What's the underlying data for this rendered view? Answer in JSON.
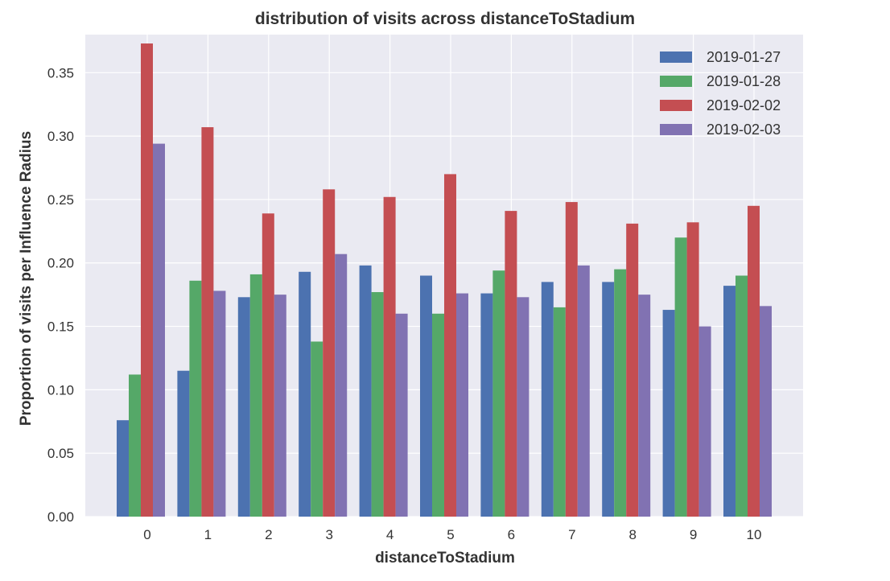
{
  "chart_data": {
    "type": "bar",
    "title": "distribution of visits across distanceToStadium",
    "xlabel": "distanceToStadium",
    "ylabel": "Proportion of visits per Influence Radius",
    "categories": [
      "0",
      "1",
      "2",
      "3",
      "4",
      "5",
      "6",
      "7",
      "8",
      "9",
      "10"
    ],
    "ylim": [
      0,
      0.38
    ],
    "yticks": [
      "0.00",
      "0.05",
      "0.10",
      "0.15",
      "0.20",
      "0.25",
      "0.30",
      "0.35"
    ],
    "grid": true,
    "legend_position": "top-right",
    "series": [
      {
        "name": "2019-01-27",
        "color": "#4c72b0",
        "values": [
          0.076,
          0.115,
          0.173,
          0.193,
          0.198,
          0.19,
          0.176,
          0.185,
          0.185,
          0.163,
          0.182
        ]
      },
      {
        "name": "2019-01-28",
        "color": "#55a868",
        "values": [
          0.112,
          0.186,
          0.191,
          0.138,
          0.177,
          0.16,
          0.194,
          0.165,
          0.195,
          0.22,
          0.19
        ]
      },
      {
        "name": "2019-02-02",
        "color": "#c44e52",
        "values": [
          0.373,
          0.307,
          0.239,
          0.258,
          0.252,
          0.27,
          0.241,
          0.248,
          0.231,
          0.232,
          0.245
        ]
      },
      {
        "name": "2019-02-03",
        "color": "#8172b2",
        "values": [
          0.294,
          0.178,
          0.175,
          0.207,
          0.16,
          0.176,
          0.173,
          0.198,
          0.175,
          0.15,
          0.166
        ]
      }
    ]
  },
  "style": {
    "plot_background": "#eaeaf2",
    "grid_color": "#ffffff"
  }
}
